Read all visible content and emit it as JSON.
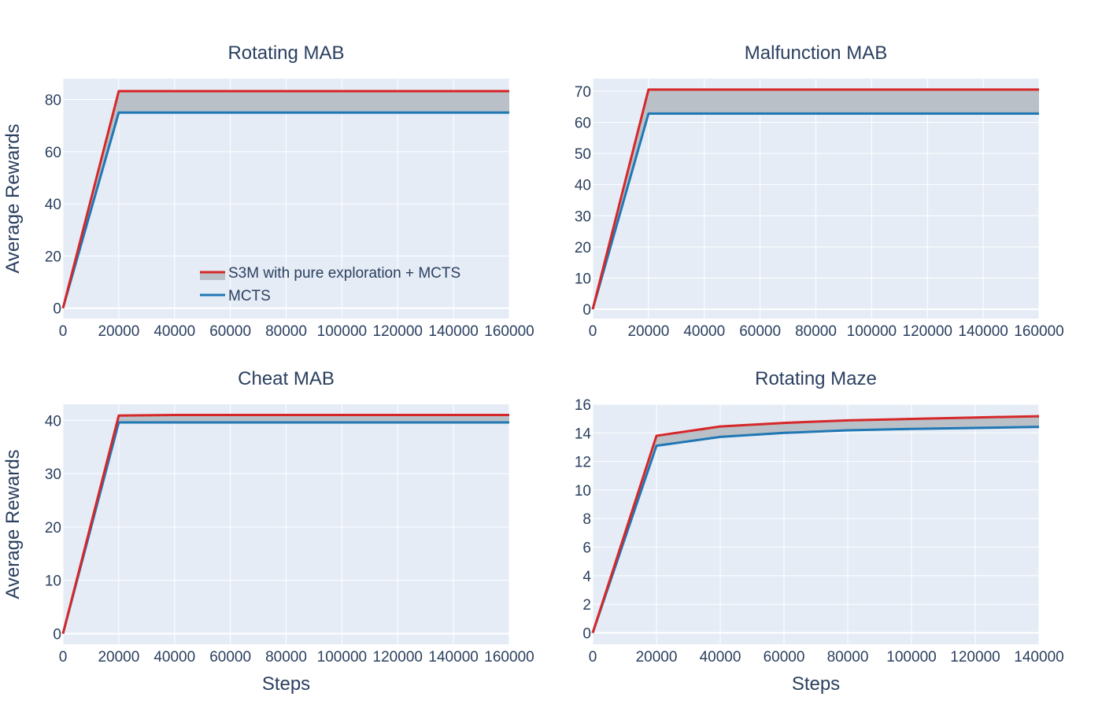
{
  "colors": {
    "plot_bg": "#e5ecf6",
    "grid": "#ffffff",
    "text": "#2a3f5f",
    "s3m": "#d62728",
    "mcts": "#1f77b4",
    "band": "#b9c0c7"
  },
  "legend": {
    "s3m": "S3M with pure exploration + MCTS",
    "mcts": "MCTS"
  },
  "chart_data": [
    {
      "type": "line",
      "title": "Rotating MAB",
      "xlabel": "",
      "ylabel": "Average Rewards",
      "xlim": [
        0,
        160000
      ],
      "ylim": [
        -4,
        88
      ],
      "xticks": [
        0,
        20000,
        40000,
        60000,
        80000,
        100000,
        120000,
        140000,
        160000
      ],
      "yticks": [
        0,
        20,
        40,
        60,
        80
      ],
      "grid": true,
      "legend": "bottom-right",
      "band_between_series": true,
      "series": [
        {
          "name": "S3M with pure exploration + MCTS",
          "x": [
            0,
            20000,
            40000,
            60000,
            80000,
            100000,
            120000,
            140000,
            160000
          ],
          "y": [
            0,
            83.2,
            83.2,
            83.2,
            83.2,
            83.2,
            83.2,
            83.2,
            83.2
          ]
        },
        {
          "name": "MCTS",
          "x": [
            0,
            20000,
            40000,
            60000,
            80000,
            100000,
            120000,
            140000,
            160000
          ],
          "y": [
            0,
            75,
            75,
            75,
            75,
            75,
            75,
            75,
            75
          ]
        }
      ]
    },
    {
      "type": "line",
      "title": "Malfunction MAB",
      "xlabel": "",
      "ylabel": "",
      "xlim": [
        0,
        160000
      ],
      "ylim": [
        -3,
        74
      ],
      "xticks": [
        0,
        20000,
        40000,
        60000,
        80000,
        100000,
        120000,
        140000,
        160000
      ],
      "yticks": [
        0,
        10,
        20,
        30,
        40,
        50,
        60,
        70
      ],
      "grid": true,
      "band_between_series": true,
      "series": [
        {
          "name": "S3M with pure exploration + MCTS",
          "x": [
            0,
            20000,
            40000,
            60000,
            80000,
            100000,
            120000,
            140000,
            160000
          ],
          "y": [
            0,
            70.5,
            70.5,
            70.5,
            70.5,
            70.5,
            70.5,
            70.5,
            70.5
          ]
        },
        {
          "name": "MCTS",
          "x": [
            0,
            20000,
            40000,
            60000,
            80000,
            100000,
            120000,
            140000,
            160000
          ],
          "y": [
            0,
            62.8,
            62.8,
            62.8,
            62.8,
            62.8,
            62.8,
            62.8,
            62.8
          ]
        }
      ]
    },
    {
      "type": "line",
      "title": "Cheat MAB",
      "xlabel": "Steps",
      "ylabel": "Average Rewards",
      "xlim": [
        0,
        160000
      ],
      "ylim": [
        -2,
        43
      ],
      "xticks": [
        0,
        20000,
        40000,
        60000,
        80000,
        100000,
        120000,
        140000,
        160000
      ],
      "yticks": [
        0,
        10,
        20,
        30,
        40
      ],
      "grid": true,
      "band_between_series": true,
      "series": [
        {
          "name": "S3M with pure exploration + MCTS",
          "x": [
            0,
            20000,
            40000,
            60000,
            80000,
            100000,
            120000,
            140000,
            160000
          ],
          "y": [
            0,
            40.9,
            41.0,
            41.0,
            41.0,
            41.0,
            41.0,
            41.0,
            41.0
          ]
        },
        {
          "name": "MCTS",
          "x": [
            0,
            20000,
            40000,
            60000,
            80000,
            100000,
            120000,
            140000,
            160000
          ],
          "y": [
            0,
            39.6,
            39.6,
            39.6,
            39.6,
            39.6,
            39.6,
            39.6,
            39.6
          ]
        }
      ]
    },
    {
      "type": "line",
      "title": "Rotating Maze",
      "xlabel": "Steps",
      "ylabel": "",
      "xlim": [
        0,
        140000
      ],
      "ylim": [
        -0.8,
        16
      ],
      "xticks": [
        0,
        20000,
        40000,
        60000,
        80000,
        100000,
        120000,
        140000
      ],
      "yticks": [
        0,
        2,
        4,
        6,
        8,
        10,
        12,
        14,
        16
      ],
      "grid": true,
      "band_between_series": true,
      "series": [
        {
          "name": "S3M with pure exploration + MCTS",
          "x": [
            0,
            20000,
            40000,
            60000,
            80000,
            100000,
            120000,
            140000
          ],
          "y": [
            0,
            13.8,
            14.45,
            14.7,
            14.88,
            14.98,
            15.08,
            15.17
          ]
        },
        {
          "name": "MCTS",
          "x": [
            0,
            20000,
            40000,
            60000,
            80000,
            100000,
            120000,
            140000
          ],
          "y": [
            0,
            13.1,
            13.72,
            14.0,
            14.18,
            14.28,
            14.35,
            14.42
          ]
        }
      ]
    }
  ]
}
